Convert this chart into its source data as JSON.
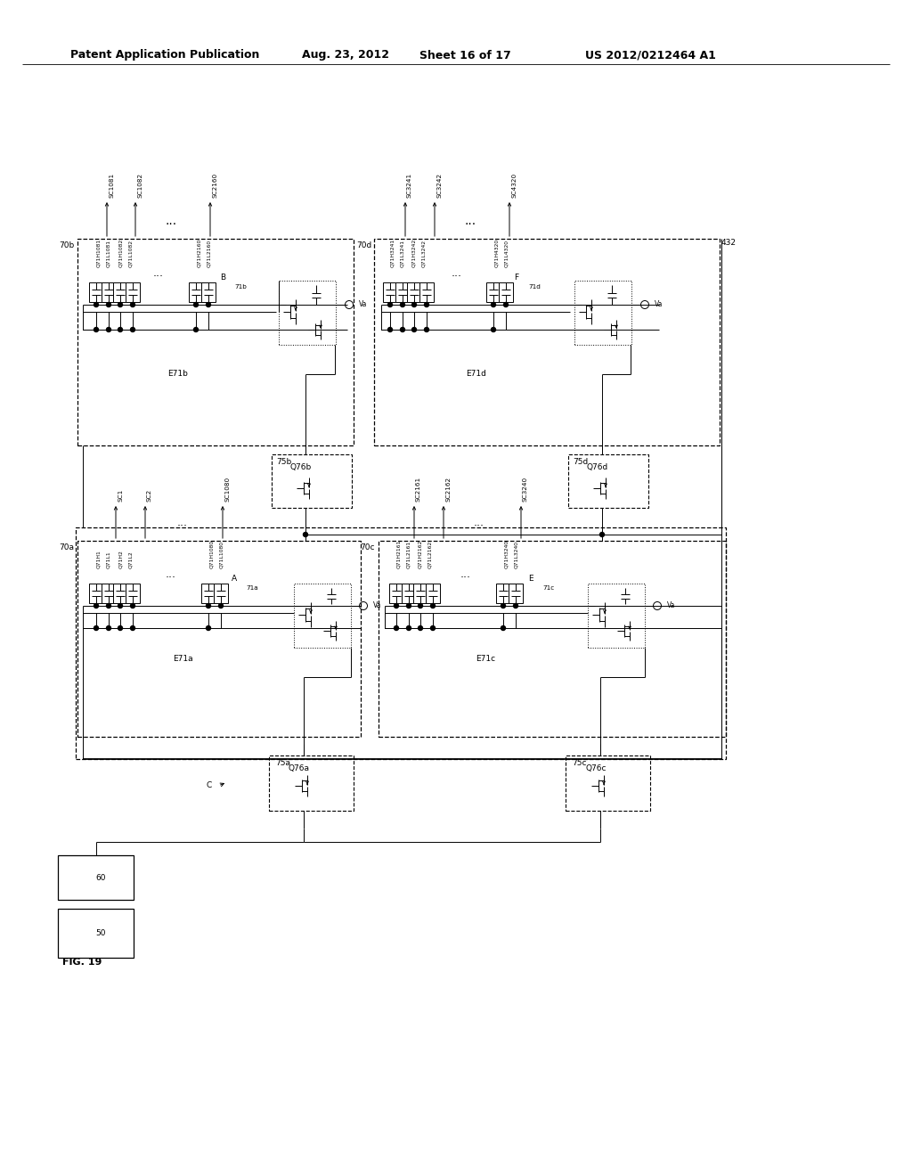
{
  "bg_color": "#ffffff",
  "header_text": "Patent Application Publication",
  "header_date": "Aug. 23, 2012",
  "header_sheet": "Sheet 16 of 17",
  "header_patent": "US 2012/0212464 A1",
  "fig_label": "FIG. 19"
}
